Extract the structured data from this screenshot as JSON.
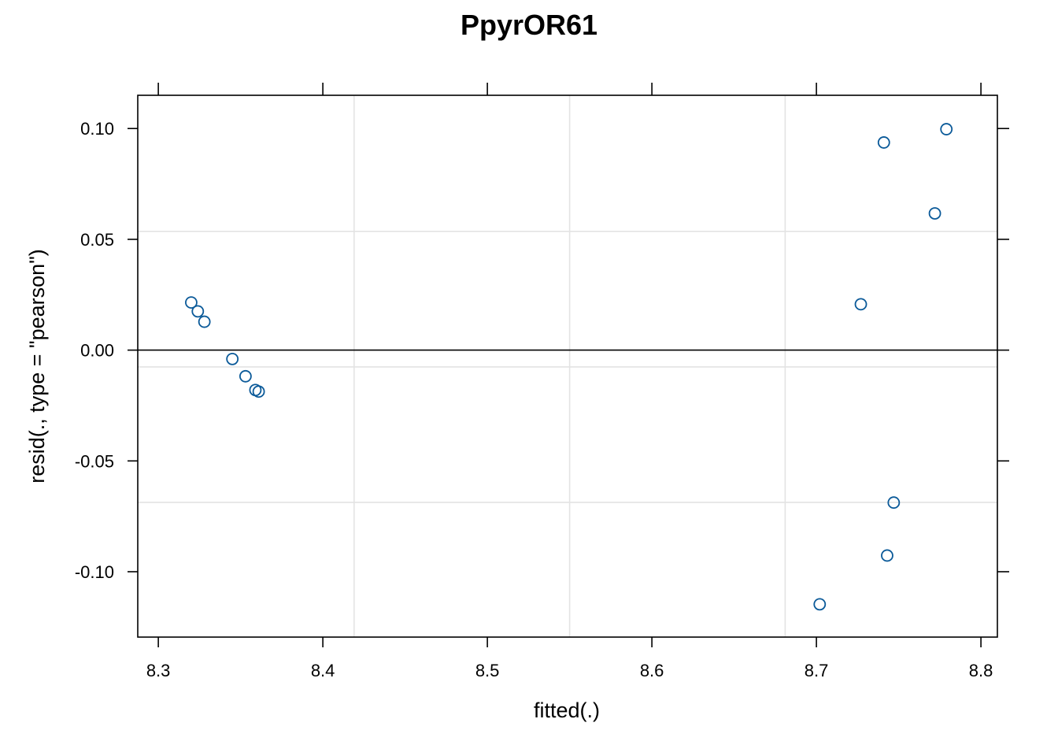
{
  "chart_data": {
    "type": "scatter",
    "title": "PpyrOR61",
    "xlabel": "fitted(.)",
    "ylabel": "resid(., type = \"pearson\")",
    "xlim": [
      8.2875,
      8.81
    ],
    "ylim": [
      -0.1295,
      0.115
    ],
    "x_ticks": [
      8.3,
      8.4,
      8.5,
      8.6,
      8.7,
      8.8
    ],
    "x_tick_labels": [
      "8.3",
      "8.4",
      "8.5",
      "8.6",
      "8.7",
      "8.8"
    ],
    "y_ticks": [
      0.1,
      0.05,
      0.0,
      -0.05,
      -0.1
    ],
    "y_tick_labels": [
      "0.10",
      "0.05",
      "0.00",
      "-0.05",
      "-0.10"
    ],
    "x_gridlines": [
      8.419,
      8.55,
      8.681
    ],
    "y_gridlines": [
      0.0536,
      -0.0076,
      -0.0687
    ],
    "reference_line_y": 0,
    "grid": true,
    "point_color": "#0b5a99",
    "points": [
      {
        "x": 8.32,
        "y": 0.0215
      },
      {
        "x": 8.324,
        "y": 0.0175
      },
      {
        "x": 8.328,
        "y": 0.0128
      },
      {
        "x": 8.345,
        "y": -0.004
      },
      {
        "x": 8.353,
        "y": -0.0118
      },
      {
        "x": 8.359,
        "y": -0.018
      },
      {
        "x": 8.361,
        "y": -0.0187
      },
      {
        "x": 8.702,
        "y": -0.1147
      },
      {
        "x": 8.727,
        "y": 0.0207
      },
      {
        "x": 8.741,
        "y": 0.0937
      },
      {
        "x": 8.743,
        "y": -0.0927
      },
      {
        "x": 8.747,
        "y": -0.0688
      },
      {
        "x": 8.772,
        "y": 0.0617
      },
      {
        "x": 8.779,
        "y": 0.0997
      }
    ]
  }
}
